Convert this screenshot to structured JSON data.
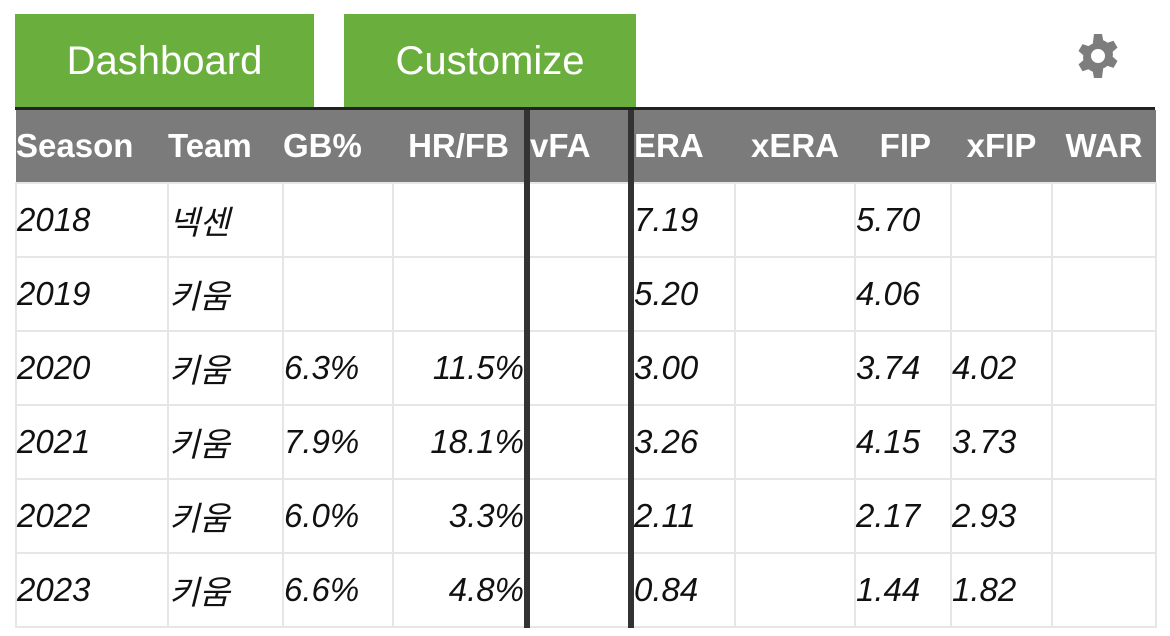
{
  "tabs": [
    {
      "label": "Dashboard"
    },
    {
      "label": "Customize"
    }
  ],
  "settings_icon": "gear-icon",
  "colors": {
    "tab_bg": "#6aaf3d",
    "header_bg": "#7b7b7b",
    "divider": "#333333"
  },
  "table": {
    "headers": [
      "Season",
      "Team",
      "GB%",
      "HR/FB",
      "vFA",
      "ERA",
      "xERA",
      "FIP",
      "xFIP",
      "WAR"
    ],
    "rows": [
      [
        "2018",
        "넥센",
        "",
        "",
        "",
        "7.19",
        "",
        "5.70",
        "",
        ""
      ],
      [
        "2019",
        "키움",
        "",
        "",
        "",
        "5.20",
        "",
        "4.06",
        "",
        ""
      ],
      [
        "2020",
        "키움",
        "6.3%",
        "11.5%",
        "",
        "3.00",
        "",
        "3.74",
        "4.02",
        ""
      ],
      [
        "2021",
        "키움",
        "7.9%",
        "18.1%",
        "",
        "3.26",
        "",
        "4.15",
        "3.73",
        ""
      ],
      [
        "2022",
        "키움",
        "6.0%",
        "3.3%",
        "",
        "2.11",
        "",
        "2.17",
        "2.93",
        ""
      ],
      [
        "2023",
        "키움",
        "6.6%",
        "4.8%",
        "",
        "0.84",
        "",
        "1.44",
        "1.82",
        ""
      ]
    ]
  }
}
